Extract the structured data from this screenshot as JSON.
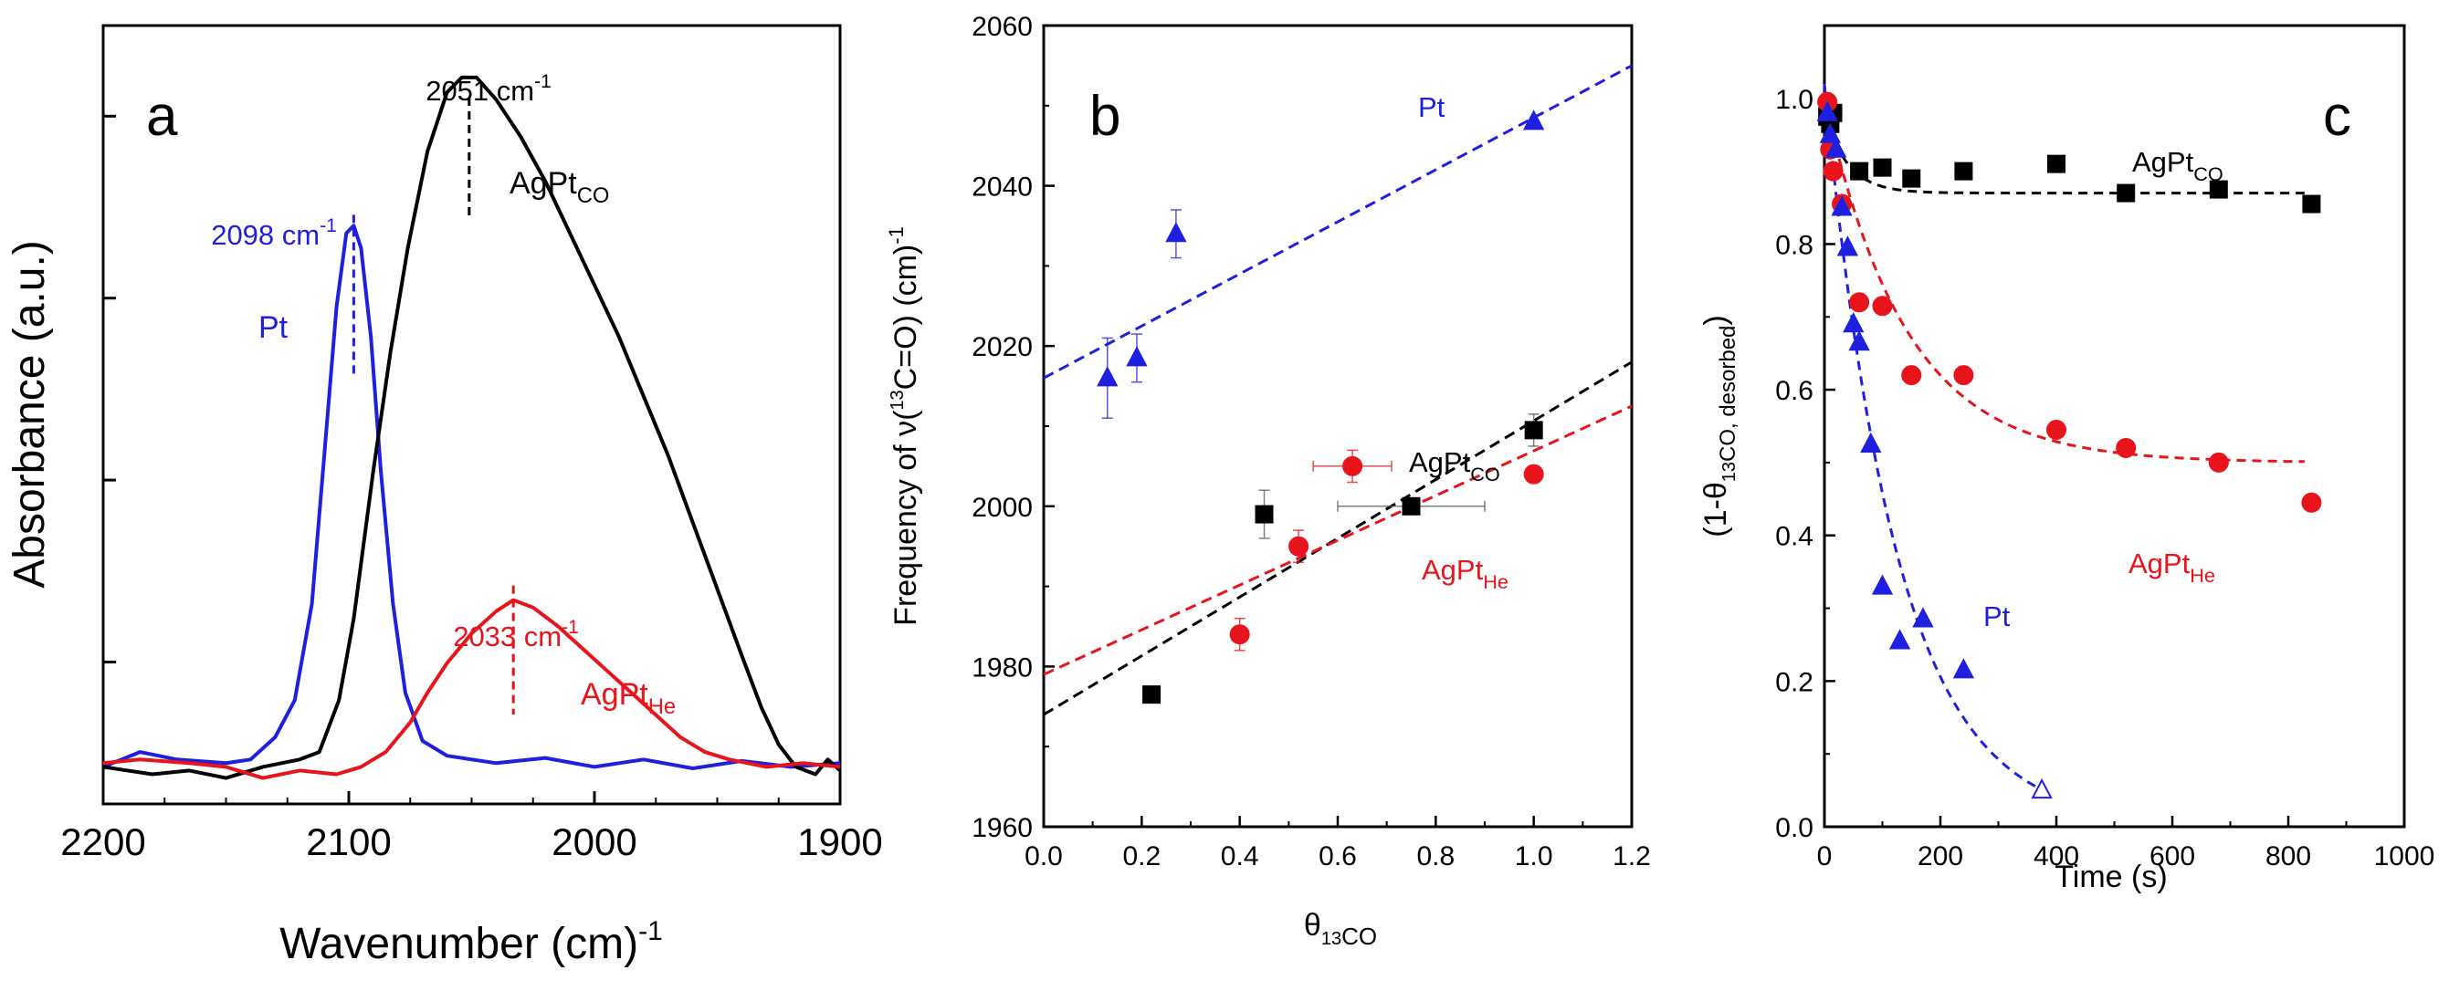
{
  "colors": {
    "pt": "#1f1fe0",
    "agpt_co": "#000000",
    "agpt_he": "#e8141c"
  },
  "chart_data": [
    {
      "panel": "a",
      "type": "line",
      "xlabel": "Wavenumber (cm)",
      "xlabel_sup": "-1",
      "ylabel": "Absorbance (a.u.)",
      "xlim": [
        2200,
        1900
      ],
      "x_ticks": [
        "2200",
        "2100",
        "2000",
        "1900"
      ],
      "ylim": [
        -0.05,
        1.0
      ],
      "y_ticks_unlabeled": 4,
      "series": [
        {
          "name": "Pt",
          "color_key": "pt",
          "points": [
            [
              2200,
              0.0
            ],
            [
              2185,
              0.02
            ],
            [
              2170,
              0.01
            ],
            [
              2150,
              0.005
            ],
            [
              2140,
              0.01
            ],
            [
              2130,
              0.04
            ],
            [
              2122,
              0.09
            ],
            [
              2115,
              0.22
            ],
            [
              2110,
              0.42
            ],
            [
              2105,
              0.62
            ],
            [
              2101,
              0.72
            ],
            [
              2098,
              0.73
            ],
            [
              2095,
              0.7
            ],
            [
              2091,
              0.58
            ],
            [
              2087,
              0.4
            ],
            [
              2082,
              0.22
            ],
            [
              2077,
              0.1
            ],
            [
              2070,
              0.035
            ],
            [
              2060,
              0.015
            ],
            [
              2040,
              0.005
            ],
            [
              2020,
              0.012
            ],
            [
              2000,
              0.0
            ],
            [
              1980,
              0.01
            ],
            [
              1960,
              -0.002
            ],
            [
              1940,
              0.008
            ],
            [
              1920,
              0.0
            ],
            [
              1900,
              0.005
            ]
          ]
        },
        {
          "name": "AgPt_CO",
          "color_key": "agpt_co",
          "points": [
            [
              2200,
              0.0
            ],
            [
              2180,
              -0.01
            ],
            [
              2165,
              -0.005
            ],
            [
              2150,
              -0.015
            ],
            [
              2135,
              0.0
            ],
            [
              2120,
              0.01
            ],
            [
              2112,
              0.02
            ],
            [
              2104,
              0.09
            ],
            [
              2098,
              0.2
            ],
            [
              2090,
              0.4
            ],
            [
              2083,
              0.56
            ],
            [
              2076,
              0.7
            ],
            [
              2068,
              0.83
            ],
            [
              2060,
              0.91
            ],
            [
              2054,
              0.93
            ],
            [
              2048,
              0.93
            ],
            [
              2040,
              0.9
            ],
            [
              2030,
              0.85
            ],
            [
              2020,
              0.79
            ],
            [
              2010,
              0.72
            ],
            [
              2000,
              0.65
            ],
            [
              1990,
              0.58
            ],
            [
              1980,
              0.5
            ],
            [
              1970,
              0.42
            ],
            [
              1960,
              0.33
            ],
            [
              1950,
              0.24
            ],
            [
              1940,
              0.15
            ],
            [
              1932,
              0.08
            ],
            [
              1925,
              0.03
            ],
            [
              1918,
              0.0
            ],
            [
              1910,
              -0.01
            ],
            [
              1905,
              0.01
            ],
            [
              1900,
              -0.005
            ]
          ]
        },
        {
          "name": "AgPt_He",
          "color_key": "agpt_he",
          "points": [
            [
              2200,
              0.005
            ],
            [
              2185,
              0.01
            ],
            [
              2165,
              0.005
            ],
            [
              2150,
              0.0
            ],
            [
              2135,
              -0.015
            ],
            [
              2120,
              -0.005
            ],
            [
              2105,
              -0.01
            ],
            [
              2095,
              0.0
            ],
            [
              2085,
              0.02
            ],
            [
              2075,
              0.06
            ],
            [
              2068,
              0.1
            ],
            [
              2060,
              0.14
            ],
            [
              2050,
              0.18
            ],
            [
              2040,
              0.21
            ],
            [
              2033,
              0.225
            ],
            [
              2025,
              0.215
            ],
            [
              2015,
              0.19
            ],
            [
              2005,
              0.16
            ],
            [
              1995,
              0.13
            ],
            [
              1985,
              0.1
            ],
            [
              1975,
              0.07
            ],
            [
              1965,
              0.04
            ],
            [
              1955,
              0.02
            ],
            [
              1945,
              0.01
            ],
            [
              1930,
              0.0
            ],
            [
              1915,
              0.005
            ],
            [
              1900,
              0.0
            ]
          ]
        }
      ],
      "annotations": [
        {
          "text": "2051 cm",
          "sup": "-1",
          "color_key": "agpt_co",
          "peak_x": 2051
        },
        {
          "text": "2098 cm",
          "sup": "-1",
          "color_key": "pt",
          "peak_x": 2098
        },
        {
          "text": "2033 cm",
          "sup": "-1",
          "color_key": "agpt_he",
          "peak_x": 2033
        }
      ],
      "series_labels": [
        {
          "main": "AgPt",
          "sub": "CO",
          "color_key": "agpt_co"
        },
        {
          "main": "Pt",
          "sub": "",
          "color_key": "pt"
        },
        {
          "main": "AgPt",
          "sub": "He",
          "color_key": "agpt_he"
        }
      ]
    },
    {
      "panel": "b",
      "type": "scatter",
      "ylabel_parts": [
        "Frequency of ν(",
        "13",
        "C=O) (cm)",
        "-1"
      ],
      "xlabel_main": "θ",
      "xlabel_sub": "13",
      "xlabel_sub2": "CO",
      "xlim": [
        0.0,
        1.2
      ],
      "ylim": [
        1960,
        2060
      ],
      "x_ticks": [
        "0.0",
        "0.2",
        "0.4",
        "0.6",
        "0.8",
        "1.0",
        "1.2"
      ],
      "y_ticks": [
        "1960",
        "1980",
        "2000",
        "2020",
        "2040",
        "2060"
      ],
      "series": [
        {
          "name": "Pt",
          "color_key": "pt",
          "marker": "triangle",
          "points": [
            [
              0.13,
              2016,
              null,
              5
            ],
            [
              0.19,
              2018.5,
              null,
              3
            ],
            [
              0.27,
              2034,
              null,
              3
            ],
            [
              1.0,
              2048,
              null,
              null
            ]
          ],
          "fit": [
            [
              0.0,
              2016
            ],
            [
              1.2,
              2055
            ]
          ]
        },
        {
          "name": "AgPt_CO",
          "color_key": "agpt_co",
          "marker": "square",
          "points": [
            [
              0.22,
              1976.5,
              null,
              null
            ],
            [
              0.45,
              1999,
              null,
              3
            ],
            [
              0.75,
              2000,
              0.15,
              null
            ],
            [
              1.0,
              2009.5,
              null,
              2
            ]
          ],
          "fit": [
            [
              0.0,
              1974
            ],
            [
              1.2,
              2018
            ]
          ]
        },
        {
          "name": "AgPt_He",
          "color_key": "agpt_he",
          "marker": "circle",
          "points": [
            [
              0.4,
              1984,
              null,
              2
            ],
            [
              0.52,
              1995,
              null,
              2
            ],
            [
              0.63,
              2005,
              0.08,
              2
            ],
            [
              1.0,
              2004,
              null,
              null
            ]
          ],
          "fit": [
            [
              0.0,
              1979
            ],
            [
              1.2,
              2012.5
            ]
          ]
        }
      ],
      "series_labels": [
        {
          "main": "Pt",
          "sub": "",
          "color_key": "pt"
        },
        {
          "main": "AgPt",
          "sub": "CO",
          "color_key": "agpt_co"
        },
        {
          "main": "AgPt",
          "sub": "He",
          "color_key": "agpt_he"
        }
      ]
    },
    {
      "panel": "c",
      "type": "scatter",
      "ylabel_parts": [
        "(1-θ",
        "13",
        "CO, desorbed",
        ")"
      ],
      "xlabel": "Time (s)",
      "xlim": [
        0,
        1000
      ],
      "ylim": [
        0.0,
        1.1
      ],
      "x_ticks": [
        "0",
        "200",
        "400",
        "600",
        "800",
        "1000"
      ],
      "y_ticks": [
        "0.0",
        "0.2",
        "0.4",
        "0.6",
        "0.8",
        "1.0"
      ],
      "series": [
        {
          "name": "AgPt_CO",
          "color_key": "agpt_co",
          "marker": "square",
          "points": [
            [
              5,
              0.975
            ],
            [
              10,
              0.965
            ],
            [
              15,
              0.98
            ],
            [
              60,
              0.9
            ],
            [
              100,
              0.905
            ],
            [
              150,
              0.89
            ],
            [
              240,
              0.9
            ],
            [
              400,
              0.91
            ],
            [
              520,
              0.87
            ],
            [
              680,
              0.875
            ],
            [
              840,
              0.855
            ]
          ],
          "fit_model": {
            "asymptote": 0.87,
            "start": 0.98,
            "tau": 40,
            "t_end": 830
          }
        },
        {
          "name": "AgPt_He",
          "color_key": "agpt_he",
          "marker": "circle",
          "points": [
            [
              5,
              0.995
            ],
            [
              10,
              0.93
            ],
            [
              15,
              0.9
            ],
            [
              30,
              0.855
            ],
            [
              60,
              0.72
            ],
            [
              100,
              0.715
            ],
            [
              150,
              0.62
            ],
            [
              240,
              0.62
            ],
            [
              400,
              0.545
            ],
            [
              520,
              0.52
            ],
            [
              680,
              0.5
            ],
            [
              840,
              0.445
            ]
          ],
          "fit_model": {
            "asymptote": 0.5,
            "start": 1.0,
            "tau": 140,
            "t_end": 830
          }
        },
        {
          "name": "Pt",
          "color_key": "pt",
          "marker": "triangle",
          "points": [
            [
              5,
              0.98
            ],
            [
              10,
              0.95
            ],
            [
              20,
              0.93
            ],
            [
              30,
              0.85
            ],
            [
              40,
              0.795
            ],
            [
              50,
              0.69
            ],
            [
              60,
              0.665
            ],
            [
              80,
              0.525
            ],
            [
              100,
              0.33
            ],
            [
              130,
              0.255
            ],
            [
              170,
              0.285
            ],
            [
              240,
              0.215
            ]
          ],
          "open_point": [
            375,
            0.05
          ],
          "fit_model": {
            "asymptote": 0.0,
            "start": 1.02,
            "tau": 125,
            "t_end": 375
          }
        }
      ],
      "series_labels": [
        {
          "main": "AgPt",
          "sub": "CO",
          "color_key": "agpt_co"
        },
        {
          "main": "AgPt",
          "sub": "He",
          "color_key": "agpt_he"
        },
        {
          "main": "Pt",
          "sub": "",
          "color_key": "pt"
        }
      ]
    }
  ]
}
